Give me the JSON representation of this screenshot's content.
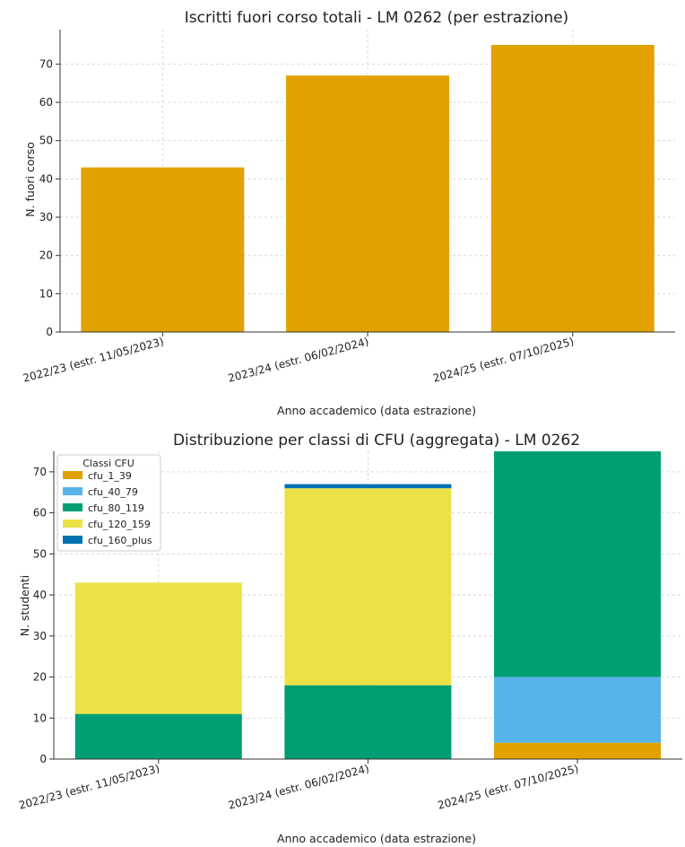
{
  "chart_data": [
    {
      "type": "bar",
      "title": "Iscritti fuori corso totali - LM 0262 (per estrazione)",
      "xlabel": "Anno accademico (data estrazione)",
      "ylabel": "N. fuori corso",
      "categories": [
        "2022/23 (estr. 11/05/2023)",
        "2023/24 (estr. 06/02/2024)",
        "2024/25 (estr. 07/10/2025)"
      ],
      "values": [
        43,
        67,
        75
      ],
      "ylim": [
        0,
        79
      ],
      "yticks": [
        0,
        10,
        20,
        30,
        40,
        50,
        60,
        70
      ],
      "grid": true,
      "colors": {
        "bar": "#E1A200"
      }
    },
    {
      "type": "bar",
      "stacked": true,
      "title": "Distribuzione per classi di CFU (aggregata) - LM 0262",
      "xlabel": "Anno accademico (data estrazione)",
      "ylabel": "N. studenti",
      "categories": [
        "2022/23 (estr. 11/05/2023)",
        "2023/24 (estr. 06/02/2024)",
        "2024/25 (estr. 07/10/2025)"
      ],
      "legend_title": "Classi CFU",
      "legend_position": "top-left",
      "series": [
        {
          "name": "cfu_1_39",
          "values": [
            0,
            0,
            4
          ],
          "color": "#E1A200"
        },
        {
          "name": "cfu_40_79",
          "values": [
            0,
            0,
            16
          ],
          "color": "#56B4E9"
        },
        {
          "name": "cfu_80_119",
          "values": [
            11,
            18,
            55
          ],
          "color": "#009E73"
        },
        {
          "name": "cfu_120_159",
          "values": [
            32,
            48,
            0
          ],
          "color": "#ECE247"
        },
        {
          "name": "cfu_160_plus",
          "values": [
            0,
            1,
            0
          ],
          "color": "#0072B2"
        }
      ],
      "ylim": [
        0,
        75
      ],
      "yticks": [
        0,
        10,
        20,
        30,
        40,
        50,
        60,
        70
      ],
      "grid": true
    }
  ]
}
